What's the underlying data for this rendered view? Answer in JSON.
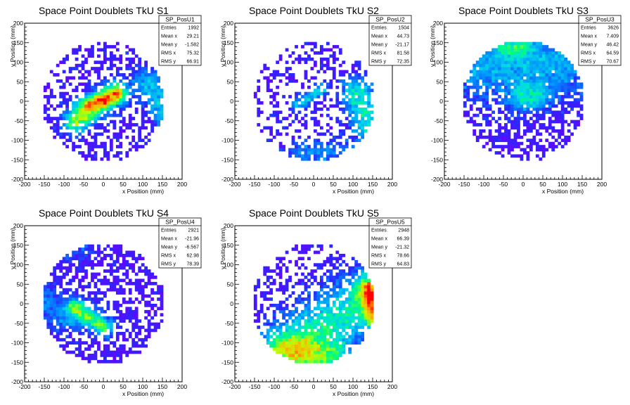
{
  "chart_data": [
    {
      "type": "heatmap",
      "title": "Space Point Doublets TkU S1",
      "xlabel": "x Position (mm)",
      "ylabel": "y Position (mm)",
      "xlim": [
        -200,
        200
      ],
      "ylim": [
        -200,
        200
      ],
      "xticks": [
        "-200",
        "-150",
        "-100",
        "-50",
        "0",
        "50",
        "100",
        "150",
        "200"
      ],
      "yticks": [
        "-200",
        "-150",
        "-100",
        "-50",
        "0",
        "50",
        "100",
        "150",
        "200"
      ],
      "stats": {
        "name": "SP_PosU1",
        "rows": [
          {
            "label": "Entries",
            "value": "1992"
          },
          {
            "label": "Mean x",
            "value": "29.21"
          },
          {
            "label": "Mean y",
            "value": "-1.582"
          },
          {
            "label": "RMS x",
            "value": "75.32"
          },
          {
            "label": "RMS y",
            "value": "66.91"
          }
        ]
      },
      "pattern": {
        "base": 0.45,
        "bgLevel": 0.1,
        "seed": 11,
        "features": [
          {
            "x1": -70,
            "y1": -50,
            "x2": 30,
            "y2": 25,
            "w": 22,
            "level": 0.6
          },
          {
            "x1": 110,
            "y1": 50,
            "x2": 160,
            "y2": -30,
            "w": 25,
            "level": 0.32
          },
          {
            "x1": -55,
            "y1": -5,
            "x2": 40,
            "y2": 10,
            "w": 15,
            "level": 0.25
          }
        ]
      }
    },
    {
      "type": "heatmap",
      "title": "Space Point Doublets TkU S2",
      "xlabel": "x Position (mm)",
      "ylabel": "y Position (mm)",
      "xlim": [
        -200,
        200
      ],
      "ylim": [
        -200,
        200
      ],
      "xticks": [
        "-200",
        "-150",
        "-100",
        "-50",
        "0",
        "50",
        "100",
        "150",
        "200"
      ],
      "yticks": [
        "-200",
        "-150",
        "-100",
        "-50",
        "0",
        "50",
        "100",
        "150",
        "200"
      ],
      "stats": {
        "name": "SP_PosU2",
        "rows": [
          {
            "label": "Entries",
            "value": "1504"
          },
          {
            "label": "Mean x",
            "value": "44.73"
          },
          {
            "label": "Mean y",
            "value": "-21.17"
          },
          {
            "label": "RMS x",
            "value": "81.58"
          },
          {
            "label": "RMS y",
            "value": "72.35"
          }
        ]
      },
      "pattern": {
        "base": 0.32,
        "bgLevel": 0.1,
        "seed": 23,
        "features": [
          {
            "x1": 110,
            "y1": 20,
            "x2": 160,
            "y2": -100,
            "w": 30,
            "level": 0.42
          },
          {
            "x1": -40,
            "y1": -10,
            "x2": 20,
            "y2": 30,
            "w": 12,
            "level": 0.35
          },
          {
            "x1": -30,
            "y1": -130,
            "x2": 60,
            "y2": -130,
            "w": 25,
            "level": 0.2
          }
        ]
      }
    },
    {
      "type": "heatmap",
      "title": "Space Point Doublets TkU S3",
      "xlabel": "x Position (mm)",
      "ylabel": "y Position (mm)",
      "xlim": [
        -200,
        200
      ],
      "ylim": [
        -200,
        200
      ],
      "xticks": [
        "-200",
        "-150",
        "-100",
        "-50",
        "0",
        "50",
        "100",
        "150",
        "200"
      ],
      "yticks": [
        "-200",
        "-150",
        "-100",
        "-50",
        "0",
        "50",
        "100",
        "150",
        "200"
      ],
      "stats": {
        "name": "SP_PosU3",
        "rows": [
          {
            "label": "Entries",
            "value": "3626"
          },
          {
            "label": "Mean x",
            "value": "7.409"
          },
          {
            "label": "Mean y",
            "value": "46.42"
          },
          {
            "label": "RMS x",
            "value": "64.59"
          },
          {
            "label": "RMS y",
            "value": "70.67"
          }
        ]
      },
      "pattern": {
        "base": 0.5,
        "bgLevel": 0.08,
        "seed": 37,
        "features": [
          {
            "x1": -100,
            "y1": 100,
            "x2": 80,
            "y2": 100,
            "w": 70,
            "level": 0.3
          },
          {
            "x1": 0,
            "y1": 10,
            "x2": 30,
            "y2": 10,
            "w": 25,
            "level": 0.3
          },
          {
            "x1": -40,
            "y1": 140,
            "x2": -10,
            "y2": 140,
            "w": 20,
            "level": 0.25
          }
        ]
      }
    },
    {
      "type": "heatmap",
      "title": "Space Point Doublets TkU S4",
      "xlabel": "x Position (mm)",
      "ylabel": "y Position (mm)",
      "xlim": [
        -200,
        200
      ],
      "ylim": [
        -200,
        200
      ],
      "xticks": [
        "-200",
        "-150",
        "-100",
        "-50",
        "0",
        "50",
        "100",
        "150",
        "200"
      ],
      "yticks": [
        "-200",
        "-150",
        "-100",
        "-50",
        "0",
        "50",
        "100",
        "150",
        "200"
      ],
      "stats": {
        "name": "SP_PosU4",
        "rows": [
          {
            "label": "Entries",
            "value": "2921"
          },
          {
            "label": "Mean x",
            "value": "-21.96"
          },
          {
            "label": "Mean y",
            "value": "-6.567"
          },
          {
            "label": "RMS x",
            "value": "62.98"
          },
          {
            "label": "RMS y",
            "value": "78.39"
          }
        ]
      },
      "pattern": {
        "base": 0.55,
        "bgLevel": 0.08,
        "seed": 41,
        "features": [
          {
            "x1": -70,
            "y1": -10,
            "x2": 0,
            "y2": -60,
            "w": 18,
            "level": 0.55
          },
          {
            "x1": -160,
            "y1": 20,
            "x2": -100,
            "y2": -40,
            "w": 30,
            "level": 0.2
          },
          {
            "x1": -150,
            "y1": 130,
            "x2": -60,
            "y2": 150,
            "w": 25,
            "level": 0.15
          }
        ]
      }
    },
    {
      "type": "heatmap",
      "title": "Space Point Doublets TkU S5",
      "xlabel": "x Position (mm)",
      "ylabel": "y Position (mm)",
      "xlim": [
        -200,
        200
      ],
      "ylim": [
        -200,
        200
      ],
      "xticks": [
        "-200",
        "-150",
        "-100",
        "-50",
        "0",
        "50",
        "100",
        "150",
        "200"
      ],
      "yticks": [
        "-200",
        "-150",
        "-100",
        "-50",
        "0",
        "50",
        "100",
        "150",
        "200"
      ],
      "stats": {
        "name": "SP_PosU5",
        "rows": [
          {
            "label": "Entries",
            "value": "2948"
          },
          {
            "label": "Mean x",
            "value": "66.39"
          },
          {
            "label": "Mean y",
            "value": "-21.32"
          },
          {
            "label": "RMS x",
            "value": "78.66"
          },
          {
            "label": "RMS y",
            "value": "64.83"
          }
        ]
      },
      "pattern": {
        "base": 0.38,
        "bgLevel": 0.08,
        "seed": 53,
        "features": [
          {
            "x1": -40,
            "y1": -100,
            "x2": 150,
            "y2": 20,
            "w": 55,
            "level": 0.45
          },
          {
            "x1": 140,
            "y1": 40,
            "x2": 160,
            "y2": -40,
            "w": 20,
            "level": 0.45
          },
          {
            "x1": -100,
            "y1": -120,
            "x2": 60,
            "y2": -140,
            "w": 30,
            "level": 0.35
          }
        ]
      }
    }
  ]
}
